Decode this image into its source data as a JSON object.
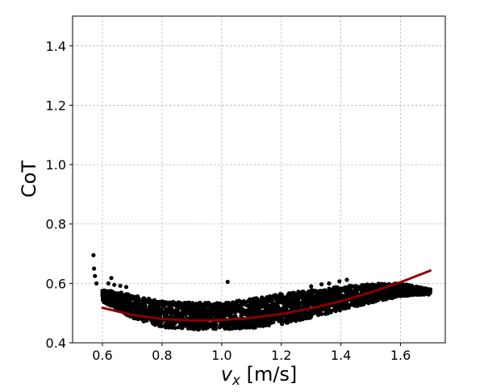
{
  "chart_data": {
    "type": "scatter",
    "title": "",
    "xlabel": {
      "var": "v",
      "sub": "x",
      "unit": " [m/s]"
    },
    "ylabel": "CoT",
    "xlim": [
      0.5,
      1.75
    ],
    "ylim": [
      0.4,
      1.5
    ],
    "xticks": [
      0.6,
      0.8,
      1.0,
      1.2,
      1.4,
      1.6
    ],
    "xtick_labels": [
      "0.6",
      "0.8",
      "1.0",
      "1.2",
      "1.4",
      "1.6"
    ],
    "yticks": [
      0.4,
      0.6,
      0.8,
      1.0,
      1.2,
      1.4
    ],
    "ytick_labels": [
      "0.4",
      "0.6",
      "0.8",
      "1.0",
      "1.2",
      "1.4"
    ],
    "grid": true,
    "series": [
      {
        "kind": "scatter",
        "color": "#000000",
        "lower_envelope": [
          [
            0.6,
            0.54
          ],
          [
            0.65,
            0.51
          ],
          [
            0.7,
            0.485
          ],
          [
            0.75,
            0.465
          ],
          [
            0.8,
            0.452
          ],
          [
            0.9,
            0.445
          ],
          [
            1.0,
            0.445
          ],
          [
            1.05,
            0.447
          ],
          [
            1.1,
            0.45
          ],
          [
            1.2,
            0.463
          ],
          [
            1.3,
            0.485
          ],
          [
            1.4,
            0.51
          ],
          [
            1.5,
            0.535
          ],
          [
            1.6,
            0.557
          ],
          [
            1.65,
            0.562
          ],
          [
            1.7,
            0.562
          ]
        ],
        "upper_envelope": [
          [
            0.6,
            0.578
          ],
          [
            0.65,
            0.572
          ],
          [
            0.7,
            0.56
          ],
          [
            0.8,
            0.54
          ],
          [
            0.9,
            0.535
          ],
          [
            1.0,
            0.535
          ],
          [
            1.1,
            0.548
          ],
          [
            1.2,
            0.565
          ],
          [
            1.3,
            0.578
          ],
          [
            1.4,
            0.59
          ],
          [
            1.5,
            0.598
          ],
          [
            1.6,
            0.6
          ],
          [
            1.65,
            0.59
          ],
          [
            1.7,
            0.58
          ]
        ],
        "outliers": [
          [
            0.57,
            0.695
          ],
          [
            0.572,
            0.65
          ],
          [
            0.575,
            0.625
          ],
          [
            0.58,
            0.6
          ],
          [
            0.62,
            0.6
          ],
          [
            0.63,
            0.618
          ],
          [
            0.64,
            0.595
          ],
          [
            0.66,
            0.592
          ],
          [
            0.68,
            0.588
          ],
          [
            0.705,
            0.555
          ],
          [
            0.82,
            0.51
          ],
          [
            0.835,
            0.5
          ],
          [
            0.86,
            0.52
          ],
          [
            0.88,
            0.505
          ],
          [
            0.89,
            0.51
          ],
          [
            0.92,
            0.523
          ],
          [
            0.95,
            0.512
          ],
          [
            1.02,
            0.605
          ],
          [
            1.3,
            0.59
          ],
          [
            1.335,
            0.597
          ],
          [
            1.36,
            0.6
          ],
          [
            1.395,
            0.607
          ],
          [
            1.42,
            0.612
          ]
        ]
      },
      {
        "kind": "line",
        "color": "#8b0000",
        "x": [
          0.6,
          0.7,
          0.8,
          0.9,
          0.95,
          1.0,
          1.1,
          1.2,
          1.3,
          1.4,
          1.5,
          1.6,
          1.7
        ],
        "y": [
          0.518,
          0.494,
          0.48,
          0.475,
          0.475,
          0.477,
          0.484,
          0.497,
          0.516,
          0.54,
          0.57,
          0.604,
          0.643
        ]
      }
    ]
  }
}
